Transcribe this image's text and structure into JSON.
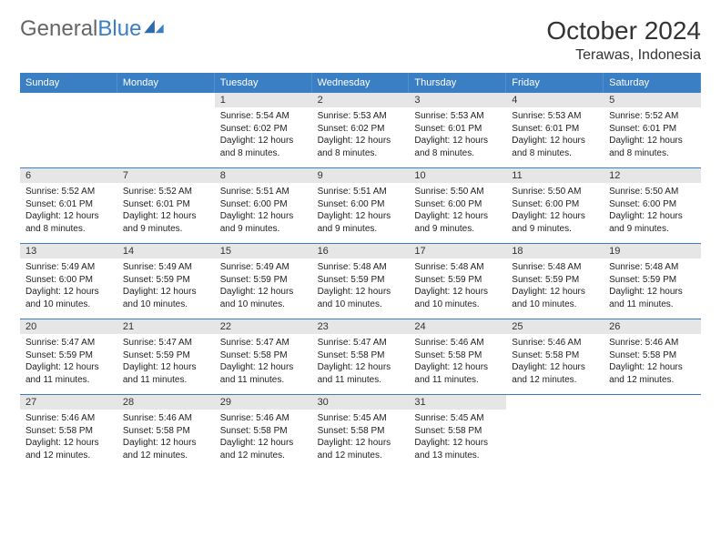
{
  "brand": {
    "part1": "General",
    "part2": "Blue"
  },
  "title": "October 2024",
  "location": "Terawas, Indonesia",
  "colors": {
    "header_bg": "#3a7fc4",
    "band_bg": "#e6e6e6",
    "week_divider": "#3a7fc4",
    "text": "#222222",
    "page_bg": "#ffffff"
  },
  "weekdays": [
    "Sunday",
    "Monday",
    "Tuesday",
    "Wednesday",
    "Thursday",
    "Friday",
    "Saturday"
  ],
  "weeks": [
    [
      null,
      null,
      {
        "n": "1",
        "sr": "Sunrise: 5:54 AM",
        "ss": "Sunset: 6:02 PM",
        "dl": "Daylight: 12 hours and 8 minutes."
      },
      {
        "n": "2",
        "sr": "Sunrise: 5:53 AM",
        "ss": "Sunset: 6:02 PM",
        "dl": "Daylight: 12 hours and 8 minutes."
      },
      {
        "n": "3",
        "sr": "Sunrise: 5:53 AM",
        "ss": "Sunset: 6:01 PM",
        "dl": "Daylight: 12 hours and 8 minutes."
      },
      {
        "n": "4",
        "sr": "Sunrise: 5:53 AM",
        "ss": "Sunset: 6:01 PM",
        "dl": "Daylight: 12 hours and 8 minutes."
      },
      {
        "n": "5",
        "sr": "Sunrise: 5:52 AM",
        "ss": "Sunset: 6:01 PM",
        "dl": "Daylight: 12 hours and 8 minutes."
      }
    ],
    [
      {
        "n": "6",
        "sr": "Sunrise: 5:52 AM",
        "ss": "Sunset: 6:01 PM",
        "dl": "Daylight: 12 hours and 8 minutes."
      },
      {
        "n": "7",
        "sr": "Sunrise: 5:52 AM",
        "ss": "Sunset: 6:01 PM",
        "dl": "Daylight: 12 hours and 9 minutes."
      },
      {
        "n": "8",
        "sr": "Sunrise: 5:51 AM",
        "ss": "Sunset: 6:00 PM",
        "dl": "Daylight: 12 hours and 9 minutes."
      },
      {
        "n": "9",
        "sr": "Sunrise: 5:51 AM",
        "ss": "Sunset: 6:00 PM",
        "dl": "Daylight: 12 hours and 9 minutes."
      },
      {
        "n": "10",
        "sr": "Sunrise: 5:50 AM",
        "ss": "Sunset: 6:00 PM",
        "dl": "Daylight: 12 hours and 9 minutes."
      },
      {
        "n": "11",
        "sr": "Sunrise: 5:50 AM",
        "ss": "Sunset: 6:00 PM",
        "dl": "Daylight: 12 hours and 9 minutes."
      },
      {
        "n": "12",
        "sr": "Sunrise: 5:50 AM",
        "ss": "Sunset: 6:00 PM",
        "dl": "Daylight: 12 hours and 9 minutes."
      }
    ],
    [
      {
        "n": "13",
        "sr": "Sunrise: 5:49 AM",
        "ss": "Sunset: 6:00 PM",
        "dl": "Daylight: 12 hours and 10 minutes."
      },
      {
        "n": "14",
        "sr": "Sunrise: 5:49 AM",
        "ss": "Sunset: 5:59 PM",
        "dl": "Daylight: 12 hours and 10 minutes."
      },
      {
        "n": "15",
        "sr": "Sunrise: 5:49 AM",
        "ss": "Sunset: 5:59 PM",
        "dl": "Daylight: 12 hours and 10 minutes."
      },
      {
        "n": "16",
        "sr": "Sunrise: 5:48 AM",
        "ss": "Sunset: 5:59 PM",
        "dl": "Daylight: 12 hours and 10 minutes."
      },
      {
        "n": "17",
        "sr": "Sunrise: 5:48 AM",
        "ss": "Sunset: 5:59 PM",
        "dl": "Daylight: 12 hours and 10 minutes."
      },
      {
        "n": "18",
        "sr": "Sunrise: 5:48 AM",
        "ss": "Sunset: 5:59 PM",
        "dl": "Daylight: 12 hours and 10 minutes."
      },
      {
        "n": "19",
        "sr": "Sunrise: 5:48 AM",
        "ss": "Sunset: 5:59 PM",
        "dl": "Daylight: 12 hours and 11 minutes."
      }
    ],
    [
      {
        "n": "20",
        "sr": "Sunrise: 5:47 AM",
        "ss": "Sunset: 5:59 PM",
        "dl": "Daylight: 12 hours and 11 minutes."
      },
      {
        "n": "21",
        "sr": "Sunrise: 5:47 AM",
        "ss": "Sunset: 5:59 PM",
        "dl": "Daylight: 12 hours and 11 minutes."
      },
      {
        "n": "22",
        "sr": "Sunrise: 5:47 AM",
        "ss": "Sunset: 5:58 PM",
        "dl": "Daylight: 12 hours and 11 minutes."
      },
      {
        "n": "23",
        "sr": "Sunrise: 5:47 AM",
        "ss": "Sunset: 5:58 PM",
        "dl": "Daylight: 12 hours and 11 minutes."
      },
      {
        "n": "24",
        "sr": "Sunrise: 5:46 AM",
        "ss": "Sunset: 5:58 PM",
        "dl": "Daylight: 12 hours and 11 minutes."
      },
      {
        "n": "25",
        "sr": "Sunrise: 5:46 AM",
        "ss": "Sunset: 5:58 PM",
        "dl": "Daylight: 12 hours and 12 minutes."
      },
      {
        "n": "26",
        "sr": "Sunrise: 5:46 AM",
        "ss": "Sunset: 5:58 PM",
        "dl": "Daylight: 12 hours and 12 minutes."
      }
    ],
    [
      {
        "n": "27",
        "sr": "Sunrise: 5:46 AM",
        "ss": "Sunset: 5:58 PM",
        "dl": "Daylight: 12 hours and 12 minutes."
      },
      {
        "n": "28",
        "sr": "Sunrise: 5:46 AM",
        "ss": "Sunset: 5:58 PM",
        "dl": "Daylight: 12 hours and 12 minutes."
      },
      {
        "n": "29",
        "sr": "Sunrise: 5:46 AM",
        "ss": "Sunset: 5:58 PM",
        "dl": "Daylight: 12 hours and 12 minutes."
      },
      {
        "n": "30",
        "sr": "Sunrise: 5:45 AM",
        "ss": "Sunset: 5:58 PM",
        "dl": "Daylight: 12 hours and 12 minutes."
      },
      {
        "n": "31",
        "sr": "Sunrise: 5:45 AM",
        "ss": "Sunset: 5:58 PM",
        "dl": "Daylight: 12 hours and 13 minutes."
      },
      null,
      null
    ]
  ]
}
